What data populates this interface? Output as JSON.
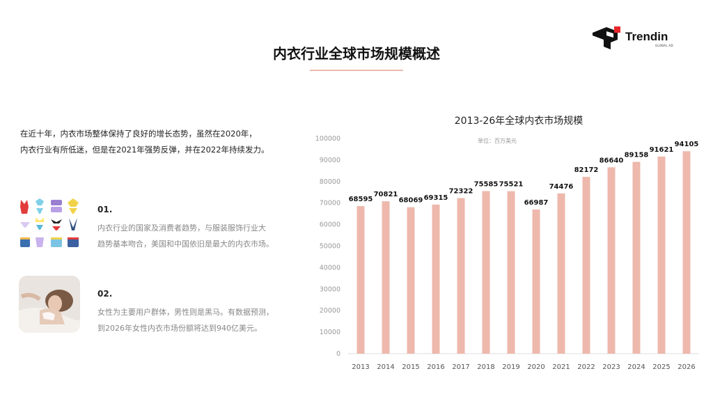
{
  "brand": {
    "name": "Trendin",
    "sub": "GLOBAL AD"
  },
  "page_title": "内衣行业全球市场规模概述",
  "intro_lines": [
    "在近十年，内衣市场整体保持了良好的增长态势，虽然在2020年，",
    "内衣行业有所低迷，但是在2021年强势反弹，并在2022年持续发力。"
  ],
  "items": [
    {
      "num": "01.",
      "lines": [
        "内衣行业的国家及消费者趋势，与服装服饰行业大",
        "趋势基本吻合，美国和中国依旧是最大的内衣市场。"
      ]
    },
    {
      "num": "02.",
      "lines": [
        "女性为主要用户群体，男性则是黑马。有数据预测，",
        "到2026年女性内衣市场份额将达到940亿美元。"
      ]
    }
  ],
  "colors": {
    "bar": "#eeb8ac",
    "accent": "#efb9ad",
    "brand_red": "#e6262a"
  },
  "chart_data": {
    "type": "bar",
    "title": "2013-26年全球内衣市场规模",
    "unit": "单位：百万美元",
    "categories": [
      "2013",
      "2014",
      "2015",
      "2016",
      "2017",
      "2018",
      "2019",
      "2020",
      "2021",
      "2022",
      "2023",
      "2024",
      "2025",
      "2026"
    ],
    "values": [
      68595,
      70821,
      68069,
      69315,
      72322,
      75585,
      75521,
      66987,
      74476,
      82172,
      86640,
      89158,
      91621,
      94105
    ],
    "ylim": [
      0,
      100000
    ],
    "yticks": [
      "0",
      "10000",
      "20000",
      "30000",
      "40000",
      "50000",
      "60000",
      "70000",
      "80000",
      "90000",
      "100000"
    ],
    "grid": false,
    "legend": "none"
  }
}
